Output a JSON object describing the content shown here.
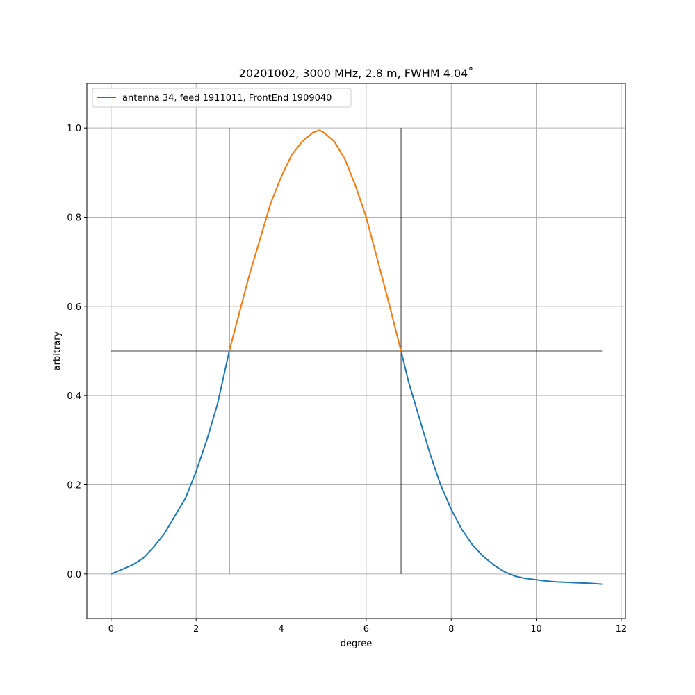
{
  "chart_data": {
    "type": "line",
    "title": "20201002, 3000 MHz, 2.8 m, FWHM 4.04$^\\circ$",
    "title_display": "20201002, 3000 MHz, 2.8 m, FWHM 4.04˚",
    "xlabel": "degree",
    "ylabel": "arbitrary",
    "xlim": [
      -0.57,
      12.1
    ],
    "ylim": [
      -0.1,
      1.1
    ],
    "xticks": [
      0,
      2,
      4,
      6,
      8,
      10,
      12
    ],
    "xtick_labels": [
      "0",
      "2",
      "4",
      "6",
      "8",
      "10",
      "12"
    ],
    "yticks": [
      0.0,
      0.2,
      0.4,
      0.6,
      0.8,
      1.0
    ],
    "ytick_labels": [
      "0.0",
      "0.2",
      "0.4",
      "0.6",
      "0.8",
      "1.0"
    ],
    "grid": true,
    "legend_position": "upper left",
    "legend": [
      "antenna 34, feed 1911011, FrontEnd 1909040"
    ],
    "colors": {
      "series": "#1f77b4",
      "fwhm": "#ff7f0e",
      "reference": "#000000",
      "grid": "#b0b0b0"
    },
    "series": [
      {
        "name": "antenna 34, feed 1911011, FrontEnd 1909040",
        "x": [
          0,
          0.25,
          0.5,
          0.75,
          1.0,
          1.25,
          1.5,
          1.75,
          2.0,
          2.25,
          2.5,
          2.78,
          3.0,
          3.25,
          3.5,
          3.75,
          4.0,
          4.25,
          4.5,
          4.75,
          4.9,
          5.0,
          5.25,
          5.5,
          5.75,
          6.0,
          6.25,
          6.5,
          6.82,
          7.0,
          7.25,
          7.5,
          7.75,
          8.0,
          8.25,
          8.5,
          8.75,
          9.0,
          9.25,
          9.5,
          9.75,
          10.0,
          10.25,
          10.5,
          10.75,
          11.0,
          11.25,
          11.55
        ],
        "y": [
          0.0,
          0.01,
          0.02,
          0.035,
          0.06,
          0.09,
          0.13,
          0.17,
          0.23,
          0.3,
          0.38,
          0.5,
          0.58,
          0.67,
          0.75,
          0.83,
          0.89,
          0.94,
          0.97,
          0.99,
          0.995,
          0.99,
          0.97,
          0.93,
          0.87,
          0.8,
          0.71,
          0.62,
          0.5,
          0.43,
          0.35,
          0.27,
          0.2,
          0.145,
          0.1,
          0.065,
          0.04,
          0.02,
          0.005,
          -0.005,
          -0.01,
          -0.013,
          -0.016,
          -0.018,
          -0.019,
          -0.02,
          -0.021,
          -0.023
        ]
      }
    ],
    "fwhm_region": {
      "x_start": 2.78,
      "x_end": 6.82
    },
    "reference_lines": {
      "half_max": {
        "y": 0.5,
        "x_start": 0,
        "x_end": 11.55
      },
      "left_vertical": {
        "x": 2.78,
        "y_start": 0,
        "y_end": 1.0
      },
      "right_vertical": {
        "x": 6.82,
        "y_start": 0,
        "y_end": 1.0
      }
    }
  }
}
